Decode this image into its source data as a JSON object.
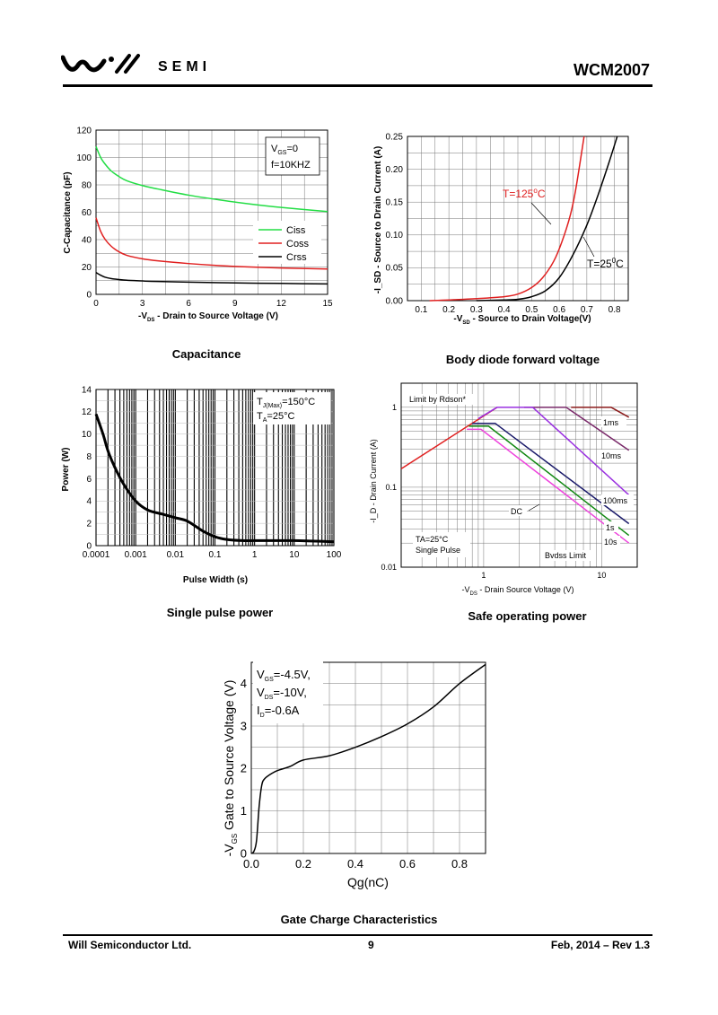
{
  "header": {
    "brand": "SEMI",
    "part_number": "WCM2007"
  },
  "footer": {
    "company": "Will Semiconductor Ltd.",
    "page": "9",
    "date_rev": "Feb, 2014 – Rev 1.3"
  },
  "captions": {
    "capacitance": "Capacitance",
    "body_diode": "Body diode forward voltage",
    "single_pulse": "Single pulse power",
    "soa": "Safe operating power",
    "gate_charge": "Gate Charge Characteristics"
  },
  "chart_data": [
    {
      "id": "capacitance",
      "type": "line",
      "xlabel": "-V_DS - Drain to Source Voltage (V)",
      "ylabel": "C-Capacitance (pF)",
      "xlim": [
        0,
        15
      ],
      "ylim": [
        0,
        120
      ],
      "xticks": [
        0,
        3,
        6,
        9,
        12,
        15
      ],
      "yticks": [
        0,
        20,
        40,
        60,
        80,
        100,
        120
      ],
      "grid": true,
      "annotations": [
        "VGS=0",
        "f=10KHZ"
      ],
      "legend_position": "center-right",
      "series": [
        {
          "name": "Ciss",
          "color": "#22dd44",
          "x": [
            0,
            0.3,
            0.6,
            1,
            1.5,
            2,
            3,
            4,
            6,
            8,
            10,
            12,
            15
          ],
          "y": [
            108,
            100,
            95,
            90,
            86,
            83,
            79.5,
            77,
            72.5,
            69,
            66,
            63.5,
            60.5
          ]
        },
        {
          "name": "Coss",
          "color": "#e02020",
          "x": [
            0,
            0.3,
            0.6,
            1,
            1.5,
            2,
            3,
            4,
            6,
            8,
            10,
            12,
            15
          ],
          "y": [
            56,
            46,
            40,
            35,
            31,
            28.5,
            26,
            24.5,
            22.5,
            21,
            20,
            19.3,
            18.5
          ]
        },
        {
          "name": "Crss",
          "color": "#000000",
          "x": [
            0,
            0.3,
            0.6,
            1,
            1.5,
            2,
            3,
            4,
            6,
            8,
            10,
            12,
            15
          ],
          "y": [
            16,
            14,
            12.5,
            11.5,
            10.8,
            10.3,
            9.8,
            9.4,
            8.9,
            8.5,
            8.2,
            8,
            7.6
          ]
        }
      ]
    },
    {
      "id": "body_diode",
      "type": "line",
      "xlabel": "-V_SD - Source to Drain Voltage(V)",
      "ylabel": "-I_SD - Source to Drain Current (A)",
      "xlim": [
        0.05,
        0.85
      ],
      "ylim": [
        0,
        0.25
      ],
      "xticks": [
        0.1,
        0.2,
        0.3,
        0.4,
        0.5,
        0.6,
        0.7,
        0.8
      ],
      "yticks": [
        0.0,
        0.05,
        0.1,
        0.15,
        0.2,
        0.25
      ],
      "ytick_labels": [
        "0.00",
        "0.05",
        "0.10",
        "0.15",
        "0.20",
        "0.25"
      ],
      "grid": true,
      "series": [
        {
          "name": "T=125°C",
          "color": "#e02020",
          "x": [
            0.13,
            0.2,
            0.3,
            0.4,
            0.45,
            0.5,
            0.54,
            0.58,
            0.61,
            0.64,
            0.66,
            0.69
          ],
          "y": [
            0,
            0.001,
            0.003,
            0.006,
            0.01,
            0.02,
            0.035,
            0.06,
            0.09,
            0.13,
            0.17,
            0.25
          ]
        },
        {
          "name": "T=25°C",
          "color": "#000000",
          "x": [
            0.3,
            0.4,
            0.45,
            0.5,
            0.55,
            0.6,
            0.65,
            0.7,
            0.74,
            0.78,
            0.81
          ],
          "y": [
            0,
            0.001,
            0.002,
            0.006,
            0.015,
            0.035,
            0.07,
            0.115,
            0.16,
            0.21,
            0.25
          ]
        }
      ]
    },
    {
      "id": "single_pulse",
      "type": "line",
      "xscale": "log",
      "xlabel": "Pulse Width (s)",
      "ylabel": "Power (W)",
      "xlim": [
        0.0001,
        100
      ],
      "ylim": [
        0,
        14
      ],
      "xtick_labels": [
        "0.0001",
        "0.001",
        "0.01",
        "0.1",
        "1",
        "10",
        "100"
      ],
      "yticks": [
        0,
        2,
        4,
        6,
        8,
        10,
        12,
        14
      ],
      "grid": true,
      "annotations": [
        "TJ(Max)=150°C",
        "TA=25°C"
      ],
      "series": [
        {
          "name": "",
          "color": "#000000",
          "x": [
            0.0001,
            0.00015,
            0.0002,
            0.0003,
            0.0005,
            0.001,
            0.002,
            0.005,
            0.01,
            0.02,
            0.05,
            0.1,
            0.2,
            0.5,
            1,
            10,
            100
          ],
          "y": [
            11.8,
            10,
            8.5,
            7,
            5.5,
            4,
            3.2,
            2.8,
            2.5,
            2.2,
            1.3,
            0.8,
            0.55,
            0.45,
            0.45,
            0.45,
            0.35
          ]
        }
      ]
    },
    {
      "id": "soa",
      "type": "line",
      "xscale": "log",
      "yscale": "log",
      "xlabel": "-V_DS - Drain Source Voltage (V)",
      "ylabel": "-I_D - Drain Current (A)",
      "xlim": [
        0.2,
        20
      ],
      "ylim": [
        0.01,
        2
      ],
      "xtick_labels": [
        "1",
        "10"
      ],
      "ytick_labels": [
        "0.01",
        "0.1",
        "1"
      ],
      "grid": true,
      "annotations": [
        "Limit by Rdson*",
        "TA=25°C",
        "Single Pulse",
        "Bvdss Limit"
      ],
      "series": [
        {
          "name": "Limit by Rdson",
          "color": "#e02020",
          "x": [
            0.2,
            1.3
          ],
          "y": [
            0.17,
            1.0
          ]
        },
        {
          "name": "1ms",
          "color": "#8b1a1a",
          "x": [
            5.5,
            12,
            17
          ],
          "y": [
            1.0,
            1.0,
            0.75
          ]
        },
        {
          "name": "10ms",
          "color": "#7a2a6a",
          "x": [
            2.2,
            5,
            17
          ],
          "y": [
            1.0,
            1.0,
            0.29
          ]
        },
        {
          "name": "100ms",
          "color": "#9a30e0",
          "x": [
            0.9,
            1.3,
            2.6,
            17
          ],
          "y": [
            0.72,
            1.0,
            1.0,
            0.08
          ]
        },
        {
          "name": "1s",
          "color": "#1a1a6a",
          "x": [
            0.8,
            1.25,
            17
          ],
          "y": [
            0.63,
            0.63,
            0.035
          ]
        },
        {
          "name": "10s",
          "color": "#118811",
          "x": [
            0.75,
            1.1,
            17
          ],
          "y": [
            0.58,
            0.58,
            0.025
          ]
        },
        {
          "name": "DC",
          "color": "#ee44dd",
          "x": [
            0.72,
            0.95,
            17
          ],
          "y": [
            0.53,
            0.53,
            0.02
          ]
        }
      ]
    },
    {
      "id": "gate_charge",
      "type": "line",
      "xlabel": "Qg(nC)",
      "ylabel": "-VGS Gate to Source Voltage (V)",
      "xlim": [
        0,
        0.9
      ],
      "ylim": [
        0,
        4.5
      ],
      "xticks": [
        0.0,
        0.2,
        0.4,
        0.6,
        0.8
      ],
      "xtick_labels": [
        "0.0",
        "0.2",
        "0.4",
        "0.6",
        "0.8"
      ],
      "yticks": [
        0,
        1,
        2,
        3,
        4
      ],
      "grid": true,
      "annotations": [
        "VGS=-4.5V,",
        "VDS=-10V,",
        "ID=-0.6A"
      ],
      "series": [
        {
          "name": "",
          "color": "#000000",
          "x": [
            0,
            0.01,
            0.02,
            0.03,
            0.04,
            0.05,
            0.07,
            0.1,
            0.15,
            0.2,
            0.3,
            0.4,
            0.5,
            0.6,
            0.7,
            0.8,
            0.9
          ],
          "y": [
            0,
            0.05,
            0.3,
            1.1,
            1.6,
            1.75,
            1.85,
            1.95,
            2.05,
            2.2,
            2.3,
            2.5,
            2.75,
            3.05,
            3.45,
            4.0,
            4.45
          ]
        }
      ]
    }
  ]
}
